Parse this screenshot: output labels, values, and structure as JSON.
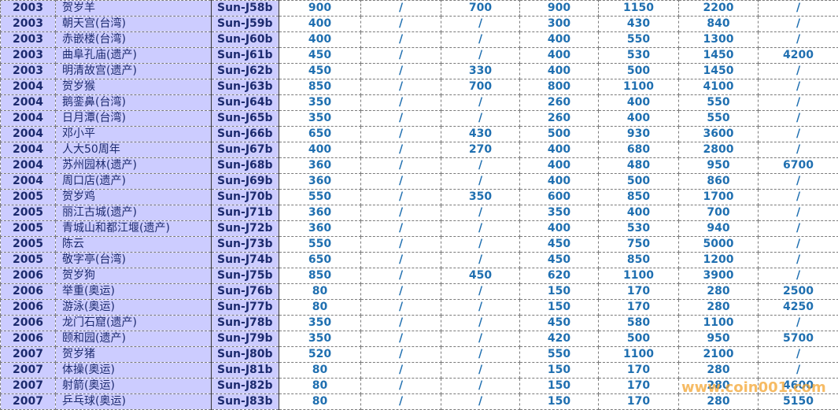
{
  "table": {
    "rows": [
      [
        "2003",
        "贺岁羊",
        "Sun-J58b",
        900,
        "/",
        700,
        900,
        1150,
        2200,
        "/"
      ],
      [
        "2003",
        "朝天宫(台湾)",
        "Sun-J59b",
        400,
        "/",
        "/",
        300,
        430,
        840,
        "/"
      ],
      [
        "2003",
        "赤嵌楼(台湾)",
        "Sun-J60b",
        400,
        "/",
        "/",
        400,
        550,
        1300,
        "/"
      ],
      [
        "2003",
        "曲阜孔庙(遗产)",
        "Sun-J61b",
        450,
        "/",
        "/",
        400,
        530,
        1450,
        4200
      ],
      [
        "2003",
        "明清故宫(遗产)",
        "Sun-J62b",
        450,
        "/",
        330,
        400,
        500,
        1450,
        "/"
      ],
      [
        "2004",
        "贺岁猴",
        "Sun-J63b",
        850,
        "/",
        700,
        800,
        1100,
        4100,
        "/"
      ],
      [
        "2004",
        "鹅銮鼻(台湾)",
        "Sun-J64b",
        350,
        "/",
        "/",
        260,
        400,
        550,
        "/"
      ],
      [
        "2004",
        "日月潭(台湾)",
        "Sun-J65b",
        350,
        "/",
        "/",
        260,
        400,
        550,
        "/"
      ],
      [
        "2004",
        "邓小平",
        "Sun-J66b",
        650,
        "/",
        430,
        500,
        930,
        3600,
        "/"
      ],
      [
        "2004",
        "人大50周年",
        "Sun-J67b",
        400,
        "/",
        270,
        400,
        680,
        2800,
        "/"
      ],
      [
        "2004",
        "苏州园林(遗产)",
        "Sun-J68b",
        360,
        "/",
        "/",
        400,
        480,
        950,
        6700
      ],
      [
        "2004",
        "周口店(遗产)",
        "Sun-J69b",
        360,
        "/",
        "/",
        400,
        500,
        860,
        "/"
      ],
      [
        "2005",
        "贺岁鸡",
        "Sun-J70b",
        550,
        "/",
        350,
        600,
        850,
        1700,
        "/"
      ],
      [
        "2005",
        "丽江古城(遗产)",
        "Sun-J71b",
        360,
        "/",
        "/",
        350,
        400,
        700,
        "/"
      ],
      [
        "2005",
        "青城山和都江堰(遗产)",
        "Sun-J72b",
        360,
        "/",
        "/",
        400,
        530,
        940,
        "/"
      ],
      [
        "2005",
        "陈云",
        "Sun-J73b",
        550,
        "/",
        "/",
        450,
        750,
        5000,
        "/"
      ],
      [
        "2005",
        "敬字亭(台湾)",
        "Sun-J74b",
        650,
        "/",
        "/",
        450,
        850,
        1200,
        "/"
      ],
      [
        "2006",
        "贺岁狗",
        "Sun-J75b",
        850,
        "/",
        450,
        620,
        1100,
        3900,
        "/"
      ],
      [
        "2006",
        "举重(奥运)",
        "Sun-J76b",
        80,
        "/",
        "/",
        150,
        170,
        280,
        2500
      ],
      [
        "2006",
        "游泳(奥运)",
        "Sun-J77b",
        80,
        "/",
        "/",
        150,
        170,
        280,
        4250
      ],
      [
        "2006",
        "龙门石窟(遗产)",
        "Sun-J78b",
        350,
        "/",
        "/",
        450,
        580,
        1100,
        "/"
      ],
      [
        "2006",
        "颐和园(遗产)",
        "Sun-J79b",
        350,
        "/",
        "/",
        420,
        500,
        950,
        5700
      ],
      [
        "2007",
        "贺岁猪",
        "Sun-J80b",
        520,
        "/",
        "/",
        550,
        1100,
        2100,
        "/"
      ],
      [
        "2007",
        "体操(奥运)",
        "Sun-J81b",
        80,
        "/",
        "/",
        150,
        170,
        280,
        "/"
      ],
      [
        "2007",
        "射箭(奥运)",
        "Sun-J82b",
        80,
        "/",
        "/",
        150,
        170,
        280,
        4600
      ],
      [
        "2007",
        "乒乓球(奥运)",
        "Sun-J83b",
        80,
        "/",
        "/",
        150,
        170,
        280,
        5150
      ]
    ]
  },
  "watermark": "www.coin001.com"
}
